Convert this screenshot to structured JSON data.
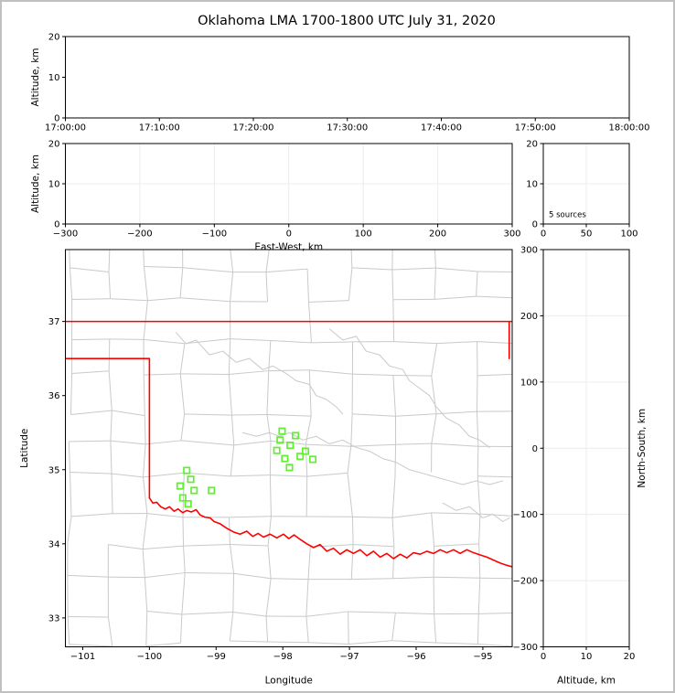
{
  "title": "Oklahoma LMA 1700-1800 UTC July 31, 2020",
  "colors": {
    "state_border": "#ff0000",
    "county_line": "#c9c9c9",
    "river_line": "#c9c9c9",
    "marker": "#5df22d",
    "gridline": "#ececec",
    "axis": "#000000",
    "frame": "#c0c0c0",
    "background": "#ffffff"
  },
  "chart_data": [
    {
      "id": "time_height",
      "type": "scatter",
      "description": "altitude vs time panel (empty)",
      "ylabel": "Altitude, km",
      "ylim": [
        0,
        20
      ],
      "ytick_vals": [
        0,
        10,
        20
      ],
      "ytick_labels": [
        "0",
        "10",
        "20"
      ],
      "xlim": [
        0,
        6
      ],
      "xtick_vals": [
        0,
        1,
        2,
        3,
        4,
        5,
        6
      ],
      "xtick_labels": [
        "17:00:00",
        "17:10:00",
        "17:20:00",
        "17:30:00",
        "17:40:00",
        "17:50:00",
        "18:00:00"
      ],
      "xlabel": "",
      "grid": false,
      "points": []
    },
    {
      "id": "ew_height",
      "type": "scatter",
      "description": "altitude vs east-west distance panel (empty)",
      "xlabel": "East-West, km",
      "ylabel": "Altitude, km",
      "xlim": [
        -300,
        300
      ],
      "xtick_vals": [
        -300,
        -200,
        -100,
        0,
        100,
        200,
        300
      ],
      "xtick_labels": [
        "−300",
        "−200",
        "−100",
        "0",
        "100",
        "200",
        "300"
      ],
      "ylim": [
        0,
        20
      ],
      "ytick_vals": [
        0,
        10,
        20
      ],
      "ytick_labels": [
        "0",
        "10",
        "20"
      ],
      "grid": true,
      "points": []
    },
    {
      "id": "source_histogram",
      "type": "line",
      "description": "altitude histogram panel",
      "annotation": "5 sources",
      "xlim": [
        0,
        100
      ],
      "xtick_vals": [
        0,
        50,
        100
      ],
      "xtick_labels": [
        "0",
        "50",
        "100"
      ],
      "ylim": [
        0,
        20
      ],
      "ytick_vals": [
        0,
        10,
        20
      ],
      "ytick_labels": [
        "0",
        "10",
        "20"
      ],
      "grid": true,
      "points": []
    },
    {
      "id": "plan_view",
      "type": "scatter",
      "description": "plan view map, lightning VHF sources over Oklahoma",
      "xlabel": "Longitude",
      "ylabel": "Latitude",
      "xlim": [
        -101.26,
        -94.56
      ],
      "xtick_vals": [
        -101,
        -100,
        -99,
        -98,
        -97,
        -96,
        -95
      ],
      "xtick_labels": [
        "−101",
        "−100",
        "−99",
        "−98",
        "−97",
        "−96",
        "−95"
      ],
      "ylim": [
        32.61,
        37.97
      ],
      "ytick_vals": [
        33,
        34,
        35,
        36,
        37
      ],
      "ytick_labels": [
        "33",
        "34",
        "35",
        "36",
        "37"
      ],
      "grid": false,
      "marker": {
        "shape": "open-square",
        "size": 6.4,
        "color": "#5df22d"
      },
      "sources_lonlat": [
        [
          -99.44,
          34.99
        ],
        [
          -99.38,
          34.87
        ],
        [
          -99.54,
          34.78
        ],
        [
          -99.33,
          34.72
        ],
        [
          -99.07,
          34.72
        ],
        [
          -99.5,
          34.62
        ],
        [
          -99.42,
          34.54
        ],
        [
          -98.01,
          35.52
        ],
        [
          -97.81,
          35.46
        ],
        [
          -98.04,
          35.4
        ],
        [
          -97.89,
          35.33
        ],
        [
          -98.09,
          35.26
        ],
        [
          -97.66,
          35.25
        ],
        [
          -97.97,
          35.15
        ],
        [
          -97.74,
          35.18
        ],
        [
          -97.55,
          35.14
        ],
        [
          -97.9,
          35.03
        ]
      ]
    },
    {
      "id": "ns_height",
      "type": "scatter",
      "description": "north-south distance vs altitude panel (empty)",
      "xlabel": "Altitude, km",
      "ylabel_right": "North-South, km",
      "xlim": [
        0,
        20
      ],
      "xtick_vals": [
        0,
        10,
        20
      ],
      "xtick_labels": [
        "0",
        "10",
        "20"
      ],
      "ylim": [
        -300,
        300
      ],
      "ytick_vals": [
        -300,
        -200,
        -100,
        0,
        100,
        200,
        300
      ],
      "ytick_labels": [
        "−300",
        "−200",
        "−100",
        "0",
        "100",
        "200",
        "300"
      ],
      "grid": true,
      "points": []
    }
  ],
  "map_features": {
    "state_border_polylines": [
      [
        [
          -101.26,
          37.0
        ],
        [
          -94.56,
          37.0
        ]
      ],
      [
        [
          -94.605,
          37.0
        ],
        [
          -94.605,
          36.5
        ]
      ],
      [
        [
          -101.26,
          36.5
        ],
        [
          -100.0,
          36.5
        ],
        [
          -100.0,
          34.62
        ]
      ],
      [
        [
          -100.0,
          34.62
        ],
        [
          -99.95,
          34.55
        ],
        [
          -99.89,
          34.56
        ],
        [
          -99.83,
          34.5
        ],
        [
          -99.76,
          34.47
        ],
        [
          -99.7,
          34.5
        ],
        [
          -99.63,
          34.44
        ],
        [
          -99.57,
          34.47
        ],
        [
          -99.5,
          34.42
        ],
        [
          -99.44,
          34.45
        ],
        [
          -99.37,
          34.43
        ],
        [
          -99.3,
          34.46
        ],
        [
          -99.24,
          34.39
        ],
        [
          -99.17,
          34.36
        ],
        [
          -99.09,
          34.35
        ],
        [
          -99.03,
          34.3
        ],
        [
          -98.94,
          34.27
        ],
        [
          -98.84,
          34.21
        ],
        [
          -98.74,
          34.16
        ],
        [
          -98.64,
          34.13
        ],
        [
          -98.54,
          34.17
        ],
        [
          -98.45,
          34.1
        ],
        [
          -98.37,
          34.14
        ],
        [
          -98.29,
          34.09
        ],
        [
          -98.19,
          34.13
        ],
        [
          -98.09,
          34.08
        ],
        [
          -97.99,
          34.13
        ],
        [
          -97.91,
          34.07
        ],
        [
          -97.83,
          34.12
        ],
        [
          -97.74,
          34.06
        ],
        [
          -97.64,
          34.0
        ],
        [
          -97.54,
          33.95
        ],
        [
          -97.44,
          33.99
        ],
        [
          -97.34,
          33.9
        ],
        [
          -97.24,
          33.94
        ],
        [
          -97.14,
          33.86
        ],
        [
          -97.04,
          33.92
        ],
        [
          -96.94,
          33.87
        ],
        [
          -96.84,
          33.92
        ],
        [
          -96.74,
          33.84
        ],
        [
          -96.64,
          33.9
        ],
        [
          -96.54,
          33.82
        ],
        [
          -96.44,
          33.87
        ],
        [
          -96.34,
          33.8
        ],
        [
          -96.24,
          33.86
        ],
        [
          -96.14,
          33.81
        ],
        [
          -96.04,
          33.88
        ],
        [
          -95.94,
          33.86
        ],
        [
          -95.84,
          33.9
        ],
        [
          -95.74,
          33.87
        ],
        [
          -95.64,
          33.92
        ],
        [
          -95.54,
          33.88
        ],
        [
          -95.44,
          33.92
        ],
        [
          -95.34,
          33.87
        ],
        [
          -95.24,
          33.92
        ],
        [
          -95.14,
          33.88
        ],
        [
          -95.04,
          33.85
        ],
        [
          -94.94,
          33.82
        ],
        [
          -94.84,
          33.78
        ],
        [
          -94.74,
          33.74
        ],
        [
          -94.64,
          33.71
        ],
        [
          -94.56,
          33.69
        ]
      ]
    ],
    "river_polylines": [
      [
        [
          -99.6,
          36.85
        ],
        [
          -99.45,
          36.7
        ],
        [
          -99.3,
          36.75
        ],
        [
          -99.1,
          36.55
        ],
        [
          -98.9,
          36.6
        ],
        [
          -98.7,
          36.45
        ],
        [
          -98.5,
          36.5
        ],
        [
          -98.3,
          36.35
        ],
        [
          -98.15,
          36.4
        ],
        [
          -97.95,
          36.3
        ],
        [
          -97.8,
          36.2
        ],
        [
          -97.6,
          36.15
        ],
        [
          -97.5,
          36.0
        ],
        [
          -97.35,
          35.95
        ],
        [
          -97.2,
          35.85
        ],
        [
          -97.1,
          35.75
        ]
      ],
      [
        [
          -97.3,
          36.9
        ],
        [
          -97.1,
          36.75
        ],
        [
          -96.9,
          36.8
        ],
        [
          -96.75,
          36.6
        ],
        [
          -96.55,
          36.55
        ],
        [
          -96.4,
          36.4
        ],
        [
          -96.2,
          36.35
        ],
        [
          -96.1,
          36.2
        ],
        [
          -95.95,
          36.1
        ],
        [
          -95.8,
          36.0
        ],
        [
          -95.7,
          35.85
        ],
        [
          -95.55,
          35.7
        ],
        [
          -95.35,
          35.6
        ],
        [
          -95.2,
          35.45
        ],
        [
          -95.05,
          35.4
        ],
        [
          -94.9,
          35.3
        ]
      ],
      [
        [
          -98.6,
          35.5
        ],
        [
          -98.4,
          35.45
        ],
        [
          -98.2,
          35.5
        ],
        [
          -98.05,
          35.45
        ],
        [
          -97.9,
          35.5
        ],
        [
          -97.7,
          35.4
        ],
        [
          -97.5,
          35.45
        ],
        [
          -97.3,
          35.35
        ],
        [
          -97.1,
          35.4
        ],
        [
          -96.9,
          35.3
        ],
        [
          -96.7,
          35.25
        ],
        [
          -96.5,
          35.15
        ],
        [
          -96.3,
          35.1
        ],
        [
          -96.1,
          35.0
        ],
        [
          -95.9,
          34.95
        ],
        [
          -95.7,
          34.9
        ],
        [
          -95.5,
          34.85
        ],
        [
          -95.3,
          34.8
        ],
        [
          -95.1,
          34.85
        ],
        [
          -94.9,
          34.8
        ],
        [
          -94.7,
          34.85
        ]
      ],
      [
        [
          -95.6,
          34.55
        ],
        [
          -95.4,
          34.45
        ],
        [
          -95.2,
          34.5
        ],
        [
          -95.0,
          34.35
        ],
        [
          -94.85,
          34.4
        ],
        [
          -94.7,
          34.3
        ],
        [
          -94.6,
          34.35
        ]
      ]
    ],
    "county_grid_spec": {
      "seed": 7,
      "col_start": -101.2,
      "col_step_min": 0.48,
      "col_step_rand": 0.26,
      "row_start": 32.65,
      "row_step_min": 0.38,
      "row_step_rand": 0.2,
      "node_jitter": 0.09,
      "skip_probability": 0.15
    }
  }
}
